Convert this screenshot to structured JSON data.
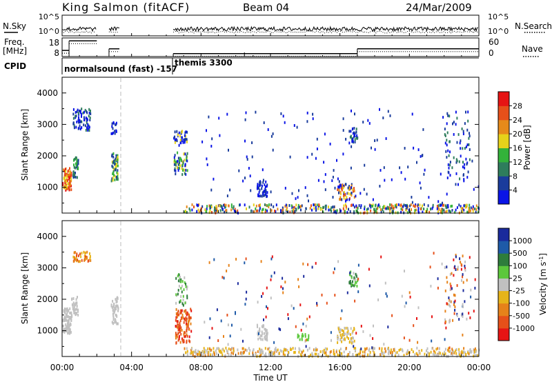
{
  "header": {
    "station": "King Salmon (fitACF)",
    "beam": "Beam 04",
    "date": "24/Mar/2009"
  },
  "strip_labels": {
    "nsky": "N.Sky",
    "nsearch": "N.Search",
    "freq_line1": "Freq.",
    "freq_line2": "[MHz]",
    "nave": "Nave",
    "cpid": "CPID"
  },
  "strip_ticks": {
    "noise_top": "10^5",
    "noise_bottom": "10^0",
    "freq_top": "18",
    "freq_bottom": "8",
    "nave_top": "60",
    "nave_bottom": "0"
  },
  "cpid_labels": {
    "first": "normalsound (fast) -157",
    "second": "themis 3300"
  },
  "axis": {
    "ylabel": "Slant Range [km]",
    "xlabel": "Time UT",
    "y_ticks": [
      "1000",
      "2000",
      "3000",
      "4000"
    ],
    "x_ticks": [
      "00:00",
      "04:00",
      "08:00",
      "12:00",
      "16:00",
      "20:00",
      "00:00"
    ]
  },
  "power_scale": {
    "label": "Power [dB]",
    "ticks": [
      "4",
      "8",
      "12",
      "16",
      "20",
      "24",
      "28"
    ],
    "colors": [
      "#0a14e6",
      "#1a3c9c",
      "#2e7d5c",
      "#33b23a",
      "#e6d21a",
      "#e68a1a",
      "#e6501a",
      "#e61414"
    ]
  },
  "velocity_scale": {
    "label": "Velocity [m s",
    "label_sup": "-1",
    "label_close": "]",
    "ticks": [
      "1000",
      "500",
      "100",
      "25",
      "-25",
      "-100",
      "-500",
      "-1000"
    ],
    "colors": [
      "#1a2a9c",
      "#1e5aa8",
      "#2e7d3c",
      "#5cc83c",
      "#c0c0c0",
      "#e6b41a",
      "#e6821a",
      "#e6501a",
      "#e61414"
    ]
  },
  "chart_data": {
    "type": "heatmap",
    "x_range_hours": [
      0,
      24
    ],
    "y_range_km": [
      180,
      4500
    ],
    "power_clusters": [
      {
        "t0": 0.0,
        "t1": 0.5,
        "r0": 900,
        "r1": 1600,
        "n": 90,
        "levels": [
          5,
          6,
          7,
          4
        ]
      },
      {
        "t0": 0.6,
        "t1": 0.9,
        "r0": 1300,
        "r1": 2000,
        "n": 40,
        "levels": [
          2,
          3,
          1
        ]
      },
      {
        "t0": 0.6,
        "t1": 1.6,
        "r0": 2800,
        "r1": 3500,
        "n": 70,
        "levels": [
          0,
          1,
          0,
          2
        ]
      },
      {
        "t0": 2.8,
        "t1": 3.2,
        "r0": 1200,
        "r1": 2100,
        "n": 55,
        "levels": [
          1,
          2,
          3,
          4
        ]
      },
      {
        "t0": 2.8,
        "t1": 3.2,
        "r0": 2700,
        "r1": 3100,
        "n": 15,
        "levels": [
          0,
          1
        ]
      },
      {
        "t0": 6.4,
        "t1": 7.2,
        "r0": 1400,
        "r1": 2100,
        "n": 60,
        "levels": [
          0,
          1,
          2,
          3,
          4
        ]
      },
      {
        "t0": 6.4,
        "t1": 7.2,
        "r0": 2300,
        "r1": 2800,
        "n": 45,
        "levels": [
          0,
          1,
          4
        ]
      },
      {
        "t0": 11.2,
        "t1": 11.8,
        "r0": 700,
        "r1": 1200,
        "n": 45,
        "levels": [
          0,
          1
        ]
      },
      {
        "t0": 15.8,
        "t1": 16.8,
        "r0": 600,
        "r1": 1100,
        "n": 60,
        "levels": [
          0,
          1,
          4,
          5,
          6
        ]
      },
      {
        "t0": 16.5,
        "t1": 17.0,
        "r0": 2400,
        "r1": 2900,
        "n": 30,
        "levels": [
          0,
          1,
          2
        ]
      },
      {
        "t0": 7.0,
        "t1": 24.0,
        "r0": 180,
        "r1": 450,
        "n": 420,
        "levels": [
          0,
          1,
          2,
          3,
          4,
          5,
          6
        ]
      },
      {
        "t0": 8.0,
        "t1": 24.0,
        "r0": 400,
        "r1": 3500,
        "n": 150,
        "levels": [
          0,
          1
        ]
      },
      {
        "t0": 22.0,
        "t1": 23.5,
        "r0": 1200,
        "r1": 3400,
        "n": 70,
        "levels": [
          0,
          1,
          2
        ]
      }
    ],
    "velocity_clusters": [
      {
        "t0": 0.0,
        "t1": 0.5,
        "r0": 900,
        "r1": 1700,
        "n": 90,
        "levels": [
          4
        ]
      },
      {
        "t0": 0.5,
        "t1": 0.9,
        "r0": 1400,
        "r1": 2100,
        "n": 35,
        "levels": [
          4
        ]
      },
      {
        "t0": 0.6,
        "t1": 1.6,
        "r0": 3200,
        "r1": 3500,
        "n": 40,
        "levels": [
          6,
          7,
          5
        ]
      },
      {
        "t0": 2.8,
        "t1": 3.2,
        "r0": 1200,
        "r1": 2100,
        "n": 50,
        "levels": [
          4
        ]
      },
      {
        "t0": 6.5,
        "t1": 7.4,
        "r0": 600,
        "r1": 1700,
        "n": 110,
        "levels": [
          6,
          7,
          7,
          8
        ]
      },
      {
        "t0": 6.5,
        "t1": 7.2,
        "r0": 1800,
        "r1": 2800,
        "n": 40,
        "levels": [
          4,
          2,
          3
        ]
      },
      {
        "t0": 11.2,
        "t1": 11.8,
        "r0": 700,
        "r1": 1200,
        "n": 40,
        "levels": [
          4
        ]
      },
      {
        "t0": 13.5,
        "t1": 14.2,
        "r0": 700,
        "r1": 900,
        "n": 15,
        "levels": [
          3
        ]
      },
      {
        "t0": 15.8,
        "t1": 16.8,
        "r0": 600,
        "r1": 1100,
        "n": 60,
        "levels": [
          4,
          5
        ]
      },
      {
        "t0": 16.5,
        "t1": 17.0,
        "r0": 2400,
        "r1": 2900,
        "n": 30,
        "levels": [
          4,
          2,
          3
        ]
      },
      {
        "t0": 7.0,
        "t1": 24.0,
        "r0": 180,
        "r1": 450,
        "n": 420,
        "levels": [
          4,
          5,
          5,
          6,
          4
        ]
      },
      {
        "t0": 8.0,
        "t1": 24.0,
        "r0": 400,
        "r1": 3500,
        "n": 150,
        "levels": [
          0,
          1,
          4,
          6,
          7,
          8
        ]
      },
      {
        "t0": 22.0,
        "t1": 23.5,
        "r0": 1200,
        "r1": 3400,
        "n": 70,
        "levels": [
          0,
          4,
          6,
          8
        ]
      }
    ],
    "frequency_steps": [
      {
        "t0": 0.0,
        "t1": 0.4,
        "mhz": 11
      },
      {
        "t0": 0.4,
        "t1": 2.0,
        "mhz": 17
      },
      {
        "t0": 2.7,
        "t1": 3.3,
        "mhz": 12
      },
      {
        "t0": 6.4,
        "t1": 17.0,
        "mhz": 9
      },
      {
        "t0": 17.0,
        "t1": 24.0,
        "mhz": 12
      }
    ],
    "cpid_changes": [
      0.0,
      6.4,
      10.5
    ],
    "noise_dotted_lines_hours": [
      3.33
    ]
  }
}
